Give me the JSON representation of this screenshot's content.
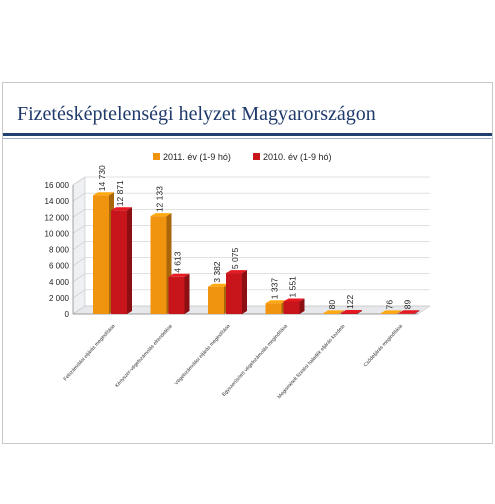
{
  "slide": {
    "title": "Fizetésképtelenségi helyzet Magyarországon"
  },
  "colors": {
    "title": "#1f3a6b",
    "rule": "#1f3f6e",
    "series_2011": "#f0930f",
    "series_2010": "#c8151c"
  },
  "chart_data": {
    "type": "bar",
    "title": "",
    "xlabel": "",
    "ylabel": "",
    "ylim": [
      0,
      16000
    ],
    "yticks": [
      "0",
      "2 000",
      "4 000",
      "6 000",
      "8 000",
      "10 000",
      "12 000",
      "14 000",
      "16 000"
    ],
    "grid": true,
    "legend_position": "top",
    "three_d": true,
    "categories": [
      "Felszámolási eljárás megindítása",
      "Kényszer-végelszámolás elrendelése",
      "Végelszámolási eljárás megindítása",
      "Egyszerűsített végelszámolás megindítása",
      "Megismételt fizetési haladék eljárás kezdete",
      "Csődeljárás megindítása"
    ],
    "series": [
      {
        "name": "2011. év (1-9 hó)",
        "color": "#f0930f",
        "values": [
          14730,
          12133,
          3382,
          1337,
          80,
          76
        ],
        "labels": [
          "14 730",
          "12 133",
          "3 382",
          "1 337",
          "80",
          "76"
        ]
      },
      {
        "name": "2010. év (1-9 hó)",
        "color": "#c8151c",
        "values": [
          12871,
          4613,
          5075,
          1551,
          122,
          89
        ],
        "labels": [
          "12 871",
          "4 613",
          "5 075",
          "1 551",
          "122",
          "89"
        ]
      }
    ]
  }
}
